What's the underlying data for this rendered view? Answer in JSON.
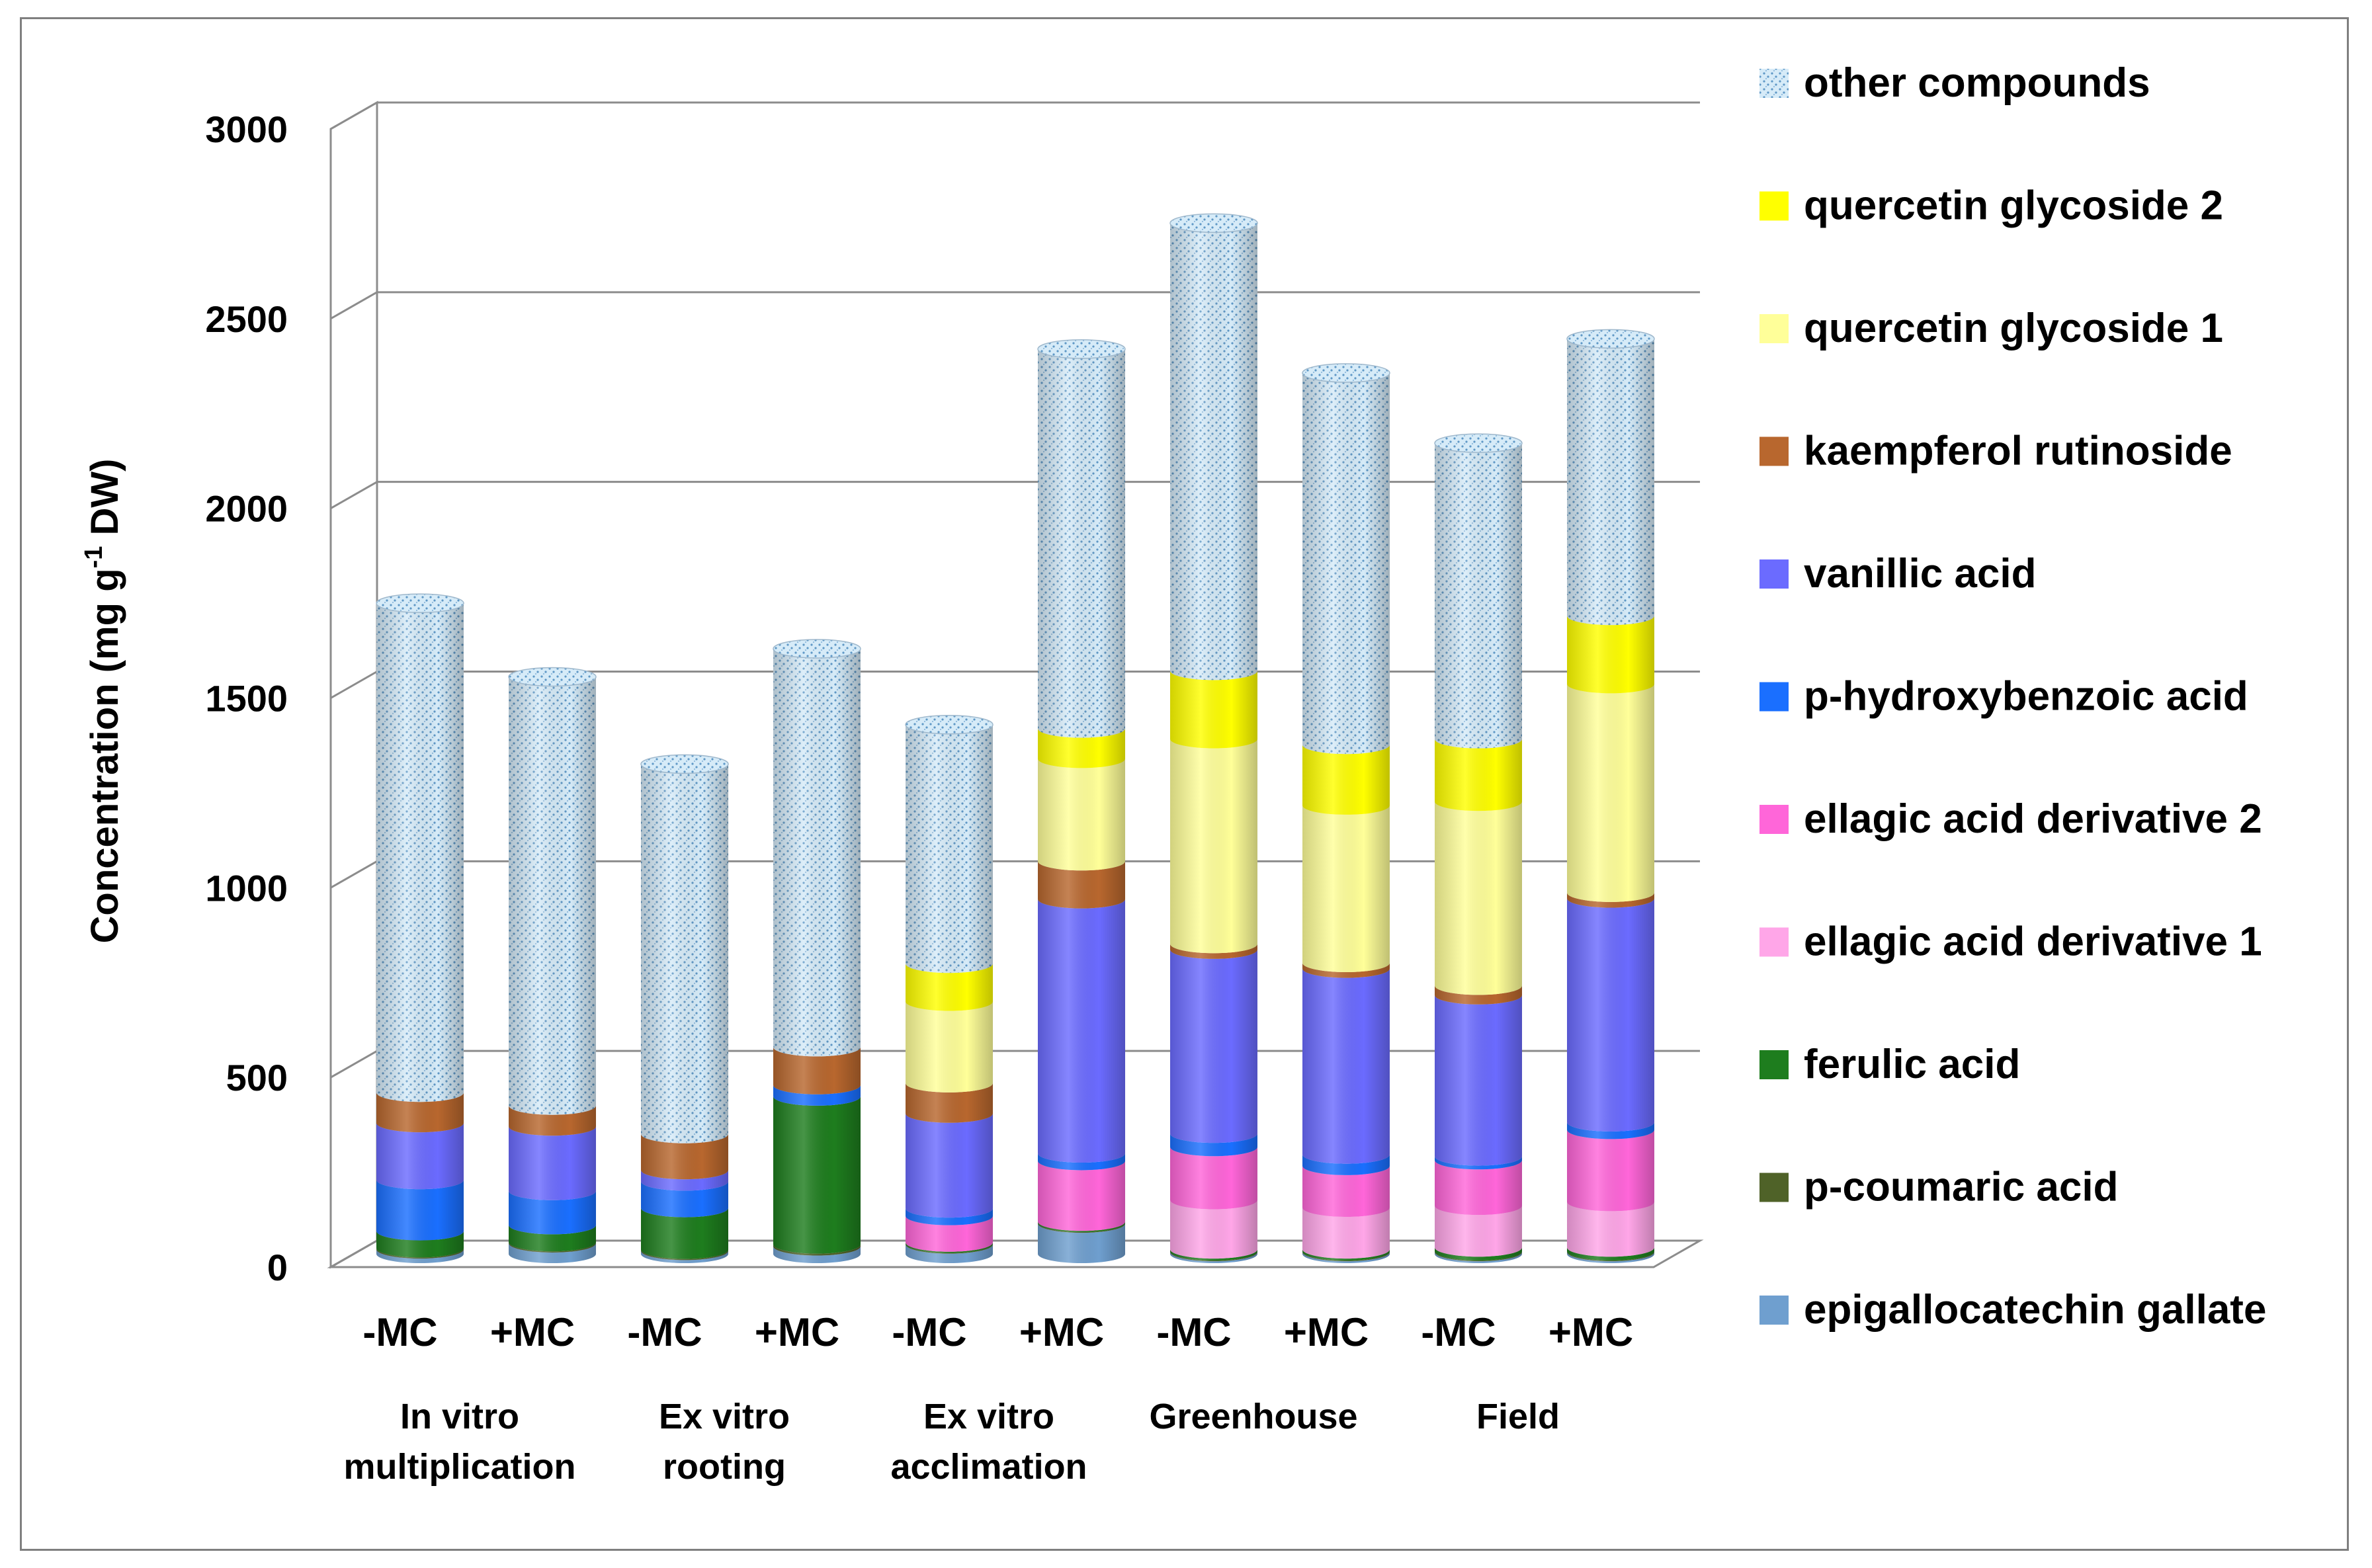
{
  "chart_data": {
    "type": "bar",
    "stacked": true,
    "style": "3d-cylinder",
    "title": "",
    "ylabel": "Concentration (mg g-1 DW)",
    "ylabel_parts": {
      "main": "Concentration (mg g",
      "sup": "-1",
      "tail": " DW)"
    },
    "xlabel": "",
    "ylim": [
      0,
      3000
    ],
    "yticks": [
      0,
      500,
      1000,
      1500,
      2000,
      2500,
      3000
    ],
    "ytick_labels": [
      "0",
      "500",
      "1000",
      "1500",
      "2000",
      "2500",
      "3000"
    ],
    "grid": true,
    "legend_position": "right",
    "categories": [
      "-MC",
      "+MC",
      "-MC",
      "+MC",
      "-MC",
      "+MC",
      "-MC",
      "+MC",
      "-MC",
      "+MC"
    ],
    "groups": [
      {
        "lines": [
          "In vitro",
          "multiplication"
        ]
      },
      {
        "lines": [
          "Ex vitro",
          "rooting"
        ]
      },
      {
        "lines": [
          "Ex vitro",
          "acclimation"
        ]
      },
      {
        "lines": [
          "Greenhouse"
        ]
      },
      {
        "lines": [
          "Field"
        ]
      }
    ],
    "series": [
      {
        "name": "epigallocatechin gallate",
        "color": "#6f9fcf",
        "values": [
          12,
          28,
          8,
          20,
          25,
          80,
          5,
          5,
          5,
          5
        ]
      },
      {
        "name": "p-coumaric acid",
        "color": "#4f6228",
        "values": [
          3,
          3,
          3,
          5,
          2,
          2,
          2,
          2,
          2,
          2
        ]
      },
      {
        "name": "ferulic acid",
        "color": "#1e7d1e",
        "values": [
          45,
          45,
          110,
          390,
          3,
          3,
          5,
          5,
          10,
          10
        ]
      },
      {
        "name": "ellagic acid derivative 1",
        "color": "#ffa6e8",
        "values": [
          0,
          0,
          0,
          0,
          0,
          0,
          130,
          110,
          110,
          120
        ]
      },
      {
        "name": "ellagic acid derivative 2",
        "color": "#ff66d9",
        "values": [
          0,
          0,
          0,
          0,
          70,
          160,
          140,
          110,
          120,
          190
        ]
      },
      {
        "name": "p-hydroxybenzoic acid",
        "color": "#1a6fff",
        "values": [
          135,
          90,
          70,
          30,
          20,
          20,
          35,
          30,
          10,
          20
        ]
      },
      {
        "name": "vanillic acid",
        "color": "#6b6bff",
        "values": [
          150,
          170,
          30,
          0,
          250,
          670,
          485,
          490,
          425,
          590
        ]
      },
      {
        "name": "kaempferol rutinoside",
        "color": "#b8672e",
        "values": [
          80,
          55,
          95,
          100,
          80,
          100,
          15,
          15,
          25,
          15
        ]
      },
      {
        "name": "quercetin glycoside 1",
        "color": "#ffff99",
        "values": [
          0,
          0,
          0,
          0,
          215,
          270,
          540,
          415,
          485,
          550
        ]
      },
      {
        "name": "quercetin glycoside 2",
        "color": "#ffff00",
        "values": [
          0,
          0,
          0,
          0,
          100,
          80,
          180,
          160,
          165,
          180
        ]
      },
      {
        "name": "other compounds",
        "color": "#c9e4f5",
        "values": [
          1290,
          1130,
          975,
          1050,
          630,
          1000,
          1180,
          980,
          780,
          730
        ]
      }
    ]
  }
}
